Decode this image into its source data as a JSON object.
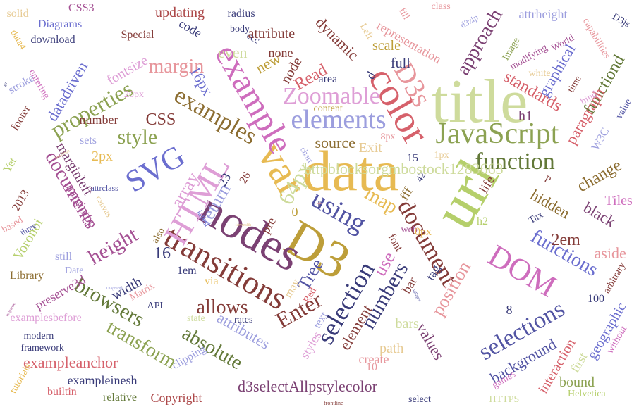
{
  "words": [
    {
      "text": "data",
      "color": "#e7ba52"
    },
    {
      "text": "title",
      "color": "#cedb9c"
    },
    {
      "text": "url",
      "color": "#b5cf6b"
    },
    {
      "text": "D3",
      "color": "#bd9e39"
    },
    {
      "text": "nodes",
      "color": "#7b4173"
    },
    {
      "text": "var",
      "color": "#e7ba52"
    },
    {
      "text": "color",
      "color": "#d6616b"
    },
    {
      "text": "example",
      "color": "#ce6dbd"
    },
    {
      "text": "transitions",
      "color": "#843c39"
    },
    {
      "text": "HTML",
      "color": "#de9ed6"
    },
    {
      "text": "JavaScript",
      "color": "#8ca252"
    },
    {
      "text": "elements",
      "color": "#9c9ede"
    },
    {
      "text": "Zoomable",
      "color": "#de9ed6"
    },
    {
      "text": "selection",
      "color": "#393b79"
    },
    {
      "text": "using",
      "color": "#5254a3"
    },
    {
      "text": "document",
      "color": "#843c39"
    },
    {
      "text": "DOM",
      "color": "#ce6dbd"
    },
    {
      "text": "selections",
      "color": "#5254a3"
    },
    {
      "text": "SVG",
      "color": "#6b6ecf"
    },
    {
      "text": "D3s",
      "color": "#e7969c"
    },
    {
      "text": "function",
      "color": "#637939"
    },
    {
      "text": "examples",
      "color": "#8c6d31"
    },
    {
      "text": "documents",
      "color": "#a55194"
    },
    {
      "text": "properties",
      "color": "#8ca252"
    },
    {
      "text": "style",
      "color": "#8ca252"
    },
    {
      "text": "height",
      "color": "#a55194"
    },
    {
      "text": "browsers",
      "color": "#637939"
    },
    {
      "text": "transform",
      "color": "#8ca252"
    },
    {
      "text": "absolute",
      "color": "#637939"
    },
    {
      "text": "allows",
      "color": "#843c39"
    },
    {
      "text": "Enter",
      "color": "#843c39"
    },
    {
      "text": "Tree",
      "color": "#5254a3"
    },
    {
      "text": "numbers",
      "color": "#393b79"
    },
    {
      "text": "use",
      "color": "#ce6dbd"
    },
    {
      "text": "position",
      "color": "#e7969c"
    },
    {
      "text": "functions",
      "color": "#6b6ecf"
    },
    {
      "text": "map",
      "color": "#e7ba52"
    },
    {
      "text": "array",
      "color": "#de9ed6"
    },
    {
      "text": "return",
      "color": "#9c9ede"
    },
    {
      "text": "attributes",
      "color": "#9c9ede"
    },
    {
      "text": "d3selectAllpstylecolor",
      "color": "#7b4173"
    },
    {
      "text": "exampleanchor",
      "color": "#d6616b"
    },
    {
      "text": "approach",
      "color": "#7b4173"
    },
    {
      "text": "standards",
      "color": "#d6616b"
    },
    {
      "text": "graphical",
      "color": "#6b6ecf"
    },
    {
      "text": "functiond",
      "color": "#637939"
    },
    {
      "text": "paragraph",
      "color": "#d6616b"
    },
    {
      "text": "change",
      "color": "#8c6d31"
    },
    {
      "text": "hidden",
      "color": "#8c6d31"
    },
    {
      "text": "black",
      "color": "#7b4173"
    },
    {
      "text": "2em",
      "color": "#843c39"
    },
    {
      "text": "aside",
      "color": "#e7969c"
    },
    {
      "text": "Tiles",
      "color": "#ce6dbd"
    },
    {
      "text": "background",
      "color": "#5254a3"
    },
    {
      "text": "interaction",
      "color": "#d6616b"
    },
    {
      "text": "geographic",
      "color": "#6b6ecf"
    },
    {
      "text": "bound",
      "color": "#8ca252"
    },
    {
      "text": "first",
      "color": "#cedb9c"
    },
    {
      "text": "values",
      "color": "#7b4173"
    },
    {
      "text": "bars",
      "color": "#cedb9c"
    },
    {
      "text": "path",
      "color": "#e7cb94"
    },
    {
      "text": "element",
      "color": "#843c39"
    },
    {
      "text": "create",
      "color": "#e7969c"
    },
    {
      "text": "styles",
      "color": "#de9ed6"
    },
    {
      "text": "text",
      "color": "#9c9ede"
    },
    {
      "text": "margin",
      "color": "#e7969c"
    },
    {
      "text": "CSS",
      "color": "#843c39"
    },
    {
      "text": "even",
      "color": "#cedb9c"
    },
    {
      "text": "new",
      "color": "#bd9e39"
    },
    {
      "text": "node",
      "color": "#843c39"
    },
    {
      "text": "none",
      "color": "#843c39"
    },
    {
      "text": "Read",
      "color": "#d6616b"
    },
    {
      "text": "attribute",
      "color": "#843c39"
    },
    {
      "text": "dynamic",
      "color": "#843c39"
    },
    {
      "text": "scale",
      "color": "#bd9e39"
    },
    {
      "text": "full",
      "color": "#393b79"
    },
    {
      "text": "representation",
      "color": "#e7969c"
    },
    {
      "text": "updating",
      "color": "#ad494a"
    },
    {
      "text": "code",
      "color": "#393b79"
    },
    {
      "text": "16px",
      "color": "#6b6ecf"
    },
    {
      "text": "fontsize",
      "color": "#de9ed6"
    },
    {
      "text": "datadriven",
      "color": "#6b6ecf"
    },
    {
      "text": "number",
      "color": "#843c39"
    },
    {
      "text": "2px",
      "color": "#e7ba52"
    },
    {
      "text": "marginleft",
      "color": "#7b4173"
    },
    {
      "text": "margintop",
      "color": "#a55194"
    },
    {
      "text": "width",
      "color": "#393b79"
    },
    {
      "text": "Voronoi",
      "color": "#b5cf6b"
    },
    {
      "text": "still",
      "color": "#9c9ede"
    },
    {
      "text": "preserve3d",
      "color": "#a55194"
    },
    {
      "text": "examplesbefore",
      "color": "#de9ed6"
    },
    {
      "text": "exampleinesh",
      "color": "#393b79"
    },
    {
      "text": "framework",
      "color": "#393b79"
    },
    {
      "text": "modern",
      "color": "#393b79"
    },
    {
      "text": "Copyright",
      "color": "#ad494a"
    },
    {
      "text": "relative",
      "color": "#637939"
    },
    {
      "text": "builtin",
      "color": "#d6616b"
    },
    {
      "text": "tutorials",
      "color": "#e7ba52"
    },
    {
      "text": "clipping",
      "color": "#9c9ede"
    },
    {
      "text": "state",
      "color": "#cedb9c"
    },
    {
      "text": "rates",
      "color": "#393b79"
    },
    {
      "text": "API",
      "color": "#393b79"
    },
    {
      "text": "Matrix",
      "color": "#e7969c"
    },
    {
      "text": "Date",
      "color": "#9c9ede"
    },
    {
      "text": "Library",
      "color": "#8c6d31"
    },
    {
      "text": "1em",
      "color": "#393b79"
    },
    {
      "text": "via",
      "color": "#e7ba52"
    },
    {
      "text": "also",
      "color": "#8c6d31"
    },
    {
      "text": "latest",
      "color": "#6b6ecf"
    },
    {
      "text": "pre",
      "color": "#843c39"
    },
    {
      "text": "23",
      "color": "#393b79"
    },
    {
      "text": "26",
      "color": "#843c39"
    },
    {
      "text": "16",
      "color": "#393b79"
    },
    {
      "text": "0",
      "color": "#bd9e39"
    },
    {
      "text": "font",
      "color": "#843c39"
    },
    {
      "text": "web",
      "color": "#a55194"
    },
    {
      "text": "0px",
      "color": "#e7ba52"
    },
    {
      "text": "bar",
      "color": "#843c39"
    },
    {
      "text": "tag",
      "color": "#393b79"
    },
    {
      "text": "fff",
      "color": "#8c6d31"
    },
    {
      "text": "15",
      "color": "#393b79"
    },
    {
      "text": "42",
      "color": "#393b79"
    },
    {
      "text": "1px",
      "color": "#e7cb94"
    },
    {
      "text": "life",
      "color": "#843c39"
    },
    {
      "text": "h2",
      "color": "#b5cf6b"
    },
    {
      "text": "P",
      "color": "#843c39"
    },
    {
      "text": "Tax",
      "color": "#393b79"
    },
    {
      "text": "h1",
      "color": "#7b4173"
    },
    {
      "text": "8",
      "color": "#393b79"
    },
    {
      "text": "10",
      "color": "#e7969c"
    },
    {
      "text": "100",
      "color": "#393b79"
    },
    {
      "text": "arbitrary",
      "color": "#843c39"
    },
    {
      "text": "without",
      "color": "#ce6dbd"
    },
    {
      "text": "games",
      "color": "#ce6dbd"
    },
    {
      "text": "Helvetica",
      "color": "#b5cf6b"
    },
    {
      "text": "HTTPS",
      "color": "#cedb9c"
    },
    {
      "text": "select",
      "color": "#393b79"
    },
    {
      "text": "content",
      "color": "#bd9e39"
    },
    {
      "text": "source",
      "color": "#8c6d31"
    },
    {
      "text": "Exit",
      "color": "#e7cb94"
    },
    {
      "text": "chart",
      "color": "#9c9ede"
    },
    {
      "text": "8px",
      "color": "#e7969c"
    },
    {
      "text": "area",
      "color": "#393b79"
    },
    {
      "text": "d",
      "color": "#393b79"
    },
    {
      "text": "Left",
      "color": "#e7cb94"
    },
    {
      "text": "fill",
      "color": "#e7969c"
    },
    {
      "text": "class",
      "color": "#e7969c"
    },
    {
      "text": "d3zip",
      "color": "#9c9ede"
    },
    {
      "text": "attrheight",
      "color": "#9c9ede"
    },
    {
      "text": "D3js",
      "color": "#393b79"
    },
    {
      "text": "World",
      "color": "#a55194"
    },
    {
      "text": "capabilities",
      "color": "#e7969c"
    },
    {
      "text": "modifying",
      "color": "#a55194"
    },
    {
      "text": "Image",
      "color": "#8ca252"
    },
    {
      "text": "white",
      "color": "#e7cb94"
    },
    {
      "text": "time",
      "color": "#843c39"
    },
    {
      "text": "bind",
      "color": "#de9ed6"
    },
    {
      "text": "value",
      "color": "#5254a3"
    },
    {
      "text": "W3C",
      "color": "#9c9ede"
    },
    {
      "text": "solid",
      "color": "#e7cb94"
    },
    {
      "text": "CSS3",
      "color": "#a55194"
    },
    {
      "text": "Diagrams",
      "color": "#6b6ecf"
    },
    {
      "text": "download",
      "color": "#393b79"
    },
    {
      "text": "Special",
      "color": "#843c39"
    },
    {
      "text": "radius",
      "color": "#393b79"
    },
    {
      "text": "body",
      "color": "#393b79"
    },
    {
      "text": "ccc",
      "color": "#393b79"
    },
    {
      "text": "data4",
      "color": "#e7ba52"
    },
    {
      "text": "stroke",
      "color": "#9c9ede"
    },
    {
      "text": "entering",
      "color": "#ce6dbd"
    },
    {
      "text": "footer",
      "color": "#843c39"
    },
    {
      "text": "20px",
      "color": "#de9ed6"
    },
    {
      "text": "Yet",
      "color": "#b5cf6b"
    },
    {
      "text": "2013",
      "color": "#843c39"
    },
    {
      "text": "based",
      "color": "#e7969c"
    },
    {
      "text": "three",
      "color": "#5254a3"
    },
    {
      "text": "attrclass",
      "color": "#5254a3"
    },
    {
      "text": "canvas",
      "color": "#e7cb94"
    },
    {
      "text": "sets",
      "color": "#9c9ede"
    },
    {
      "text": "Red",
      "color": "#d6616b"
    },
    {
      "text": "may",
      "color": "#e7cb94"
    },
    {
      "text": "ga",
      "color": "#393b79"
    },
    {
      "text": "hoosBSin",
      "color": "#e7cb94"
    },
    {
      "text": "Diagrams",
      "color": "#9c9ede"
    },
    {
      "text": "biopause",
      "color": "#a55194"
    },
    {
      "text": "villages",
      "color": "#5254a3"
    },
    {
      "text": "farwealth",
      "color": "#e7cb94"
    },
    {
      "text": "frontline",
      "color": "#843c39"
    },
    {
      "text": "64px",
      "color": "#cedb9c"
    },
    {
      "text": "httpblocksorgmbostock1283663",
      "color": "#cedb9c"
    },
    {
      "text": "||",
      "color": "#393b79"
    },
    {
      "text": "+",
      "color": "#e7969c"
    }
  ]
}
